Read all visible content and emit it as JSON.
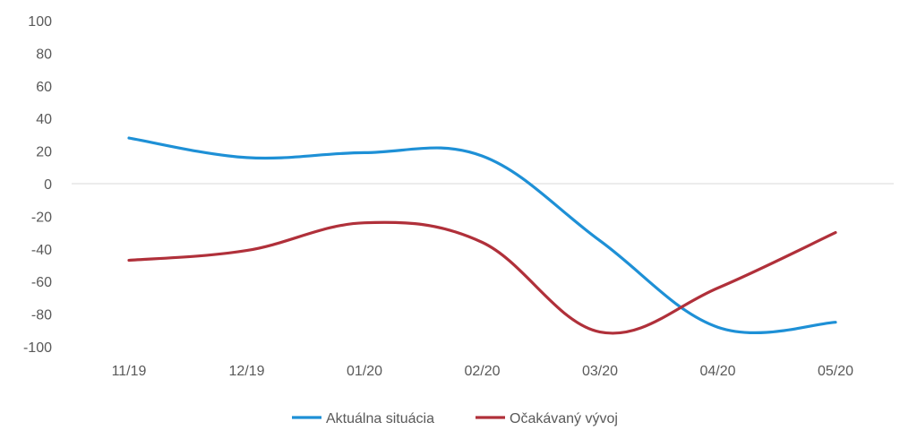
{
  "chart_data": {
    "type": "line",
    "title": "",
    "xlabel": "",
    "ylabel": "",
    "categories": [
      "11/19",
      "12/19",
      "01/20",
      "02/20",
      "03/20",
      "04/20",
      "05/20"
    ],
    "ylim": [
      -100,
      100
    ],
    "yticks": [
      100,
      80,
      60,
      40,
      20,
      0,
      -20,
      -40,
      -60,
      -80,
      -100
    ],
    "grid": false,
    "legend_position": "bottom",
    "series": [
      {
        "name": "Aktuálna situácia",
        "color": "#1E90D6",
        "values": [
          28,
          16,
          19,
          17,
          -35,
          -88,
          -85
        ]
      },
      {
        "name": "Očakávaný vývoj",
        "color": "#B0303A",
        "values": [
          -47,
          -41,
          -24,
          -36,
          -91,
          -64,
          -30
        ]
      }
    ]
  }
}
